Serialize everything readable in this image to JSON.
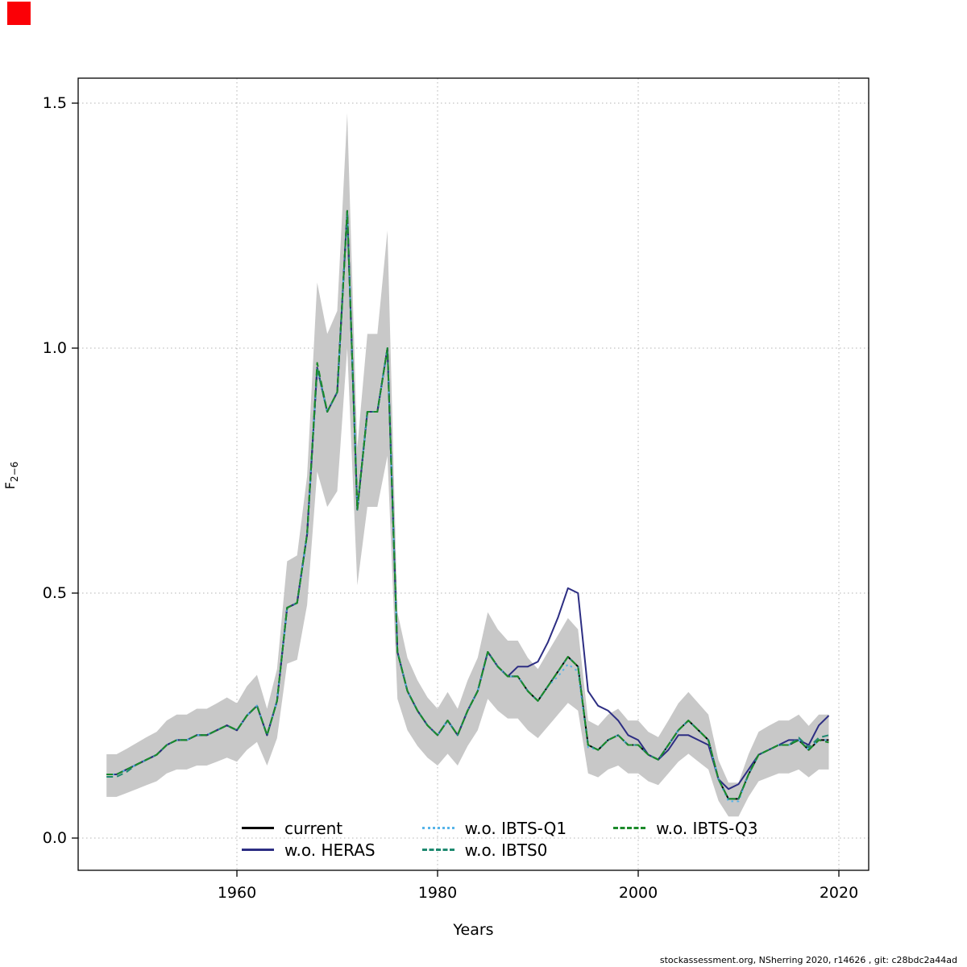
{
  "figure": {
    "xlabel": "Years",
    "ylabel_base": "F",
    "ylabel_sub": "2−6",
    "footer": "stockassessment.org, NSherring 2020, r14626 , git: c28bdc2a44ad"
  },
  "chart_data": {
    "type": "line",
    "title": "",
    "xlabel": "Years",
    "ylabel": "F_2-6",
    "xlim": [
      1944.2,
      2023
    ],
    "ylim": [
      -0.066,
      1.551
    ],
    "xticks": [
      1960,
      1980,
      2000,
      2020
    ],
    "xtick_labels": [
      "1960",
      "1980",
      "2000",
      "2020"
    ],
    "yticks": [
      0.0,
      0.5,
      1.0,
      1.5
    ],
    "ytick_labels": [
      "0.0",
      "0.5",
      "1.0",
      "1.5"
    ],
    "grid": "dotted",
    "grid_color": "#b3b3b3",
    "legend_position": "bottom-inside",
    "x": [
      1947,
      1948,
      1949,
      1950,
      1951,
      1952,
      1953,
      1954,
      1955,
      1956,
      1957,
      1958,
      1959,
      1960,
      1961,
      1962,
      1963,
      1964,
      1965,
      1966,
      1967,
      1968,
      1969,
      1970,
      1971,
      1972,
      1973,
      1974,
      1975,
      1976,
      1977,
      1978,
      1979,
      1980,
      1981,
      1982,
      1983,
      1984,
      1985,
      1986,
      1987,
      1988,
      1989,
      1990,
      1991,
      1992,
      1993,
      1994,
      1995,
      1996,
      1997,
      1998,
      1999,
      2000,
      2001,
      2002,
      2003,
      2004,
      2005,
      2006,
      2007,
      2008,
      2009,
      2010,
      2011,
      2012,
      2013,
      2014,
      2015,
      2016,
      2017,
      2018,
      2019
    ],
    "band": {
      "name": "confidence-band",
      "color": "#c8c8c8",
      "upper": [
        0.171,
        0.171,
        0.182,
        0.194,
        0.206,
        0.217,
        0.24,
        0.252,
        0.252,
        0.264,
        0.264,
        0.275,
        0.287,
        0.275,
        0.31,
        0.333,
        0.264,
        0.345,
        0.565,
        0.577,
        0.739,
        1.134,
        1.029,
        1.076,
        1.48,
        0.797,
        1.029,
        1.029,
        1.24,
        0.461,
        0.368,
        0.322,
        0.287,
        0.264,
        0.298,
        0.264,
        0.322,
        0.368,
        0.461,
        0.426,
        0.403,
        0.403,
        0.368,
        0.345,
        0.38,
        0.414,
        0.449,
        0.426,
        0.24,
        0.229,
        0.252,
        0.264,
        0.24,
        0.24,
        0.217,
        0.206,
        0.24,
        0.275,
        0.298,
        0.275,
        0.252,
        0.159,
        0.113,
        0.113,
        0.171,
        0.217,
        0.229,
        0.24,
        0.24,
        0.252,
        0.229,
        0.252,
        0.252
      ],
      "lower": [
        0.084,
        0.084,
        0.092,
        0.1,
        0.108,
        0.116,
        0.132,
        0.14,
        0.14,
        0.148,
        0.148,
        0.156,
        0.164,
        0.156,
        0.18,
        0.196,
        0.148,
        0.204,
        0.356,
        0.364,
        0.476,
        0.748,
        0.676,
        0.708,
        1.0,
        0.516,
        0.676,
        0.676,
        0.78,
        0.284,
        0.22,
        0.188,
        0.164,
        0.148,
        0.172,
        0.148,
        0.188,
        0.22,
        0.284,
        0.26,
        0.244,
        0.244,
        0.22,
        0.204,
        0.228,
        0.252,
        0.276,
        0.26,
        0.132,
        0.124,
        0.14,
        0.148,
        0.132,
        0.132,
        0.116,
        0.108,
        0.132,
        0.156,
        0.172,
        0.156,
        0.14,
        0.076,
        0.044,
        0.044,
        0.084,
        0.116,
        0.124,
        0.132,
        0.132,
        0.14,
        0.124,
        0.14,
        0.14
      ]
    },
    "series": [
      {
        "name": "current",
        "color": "#000000",
        "dash": "solid",
        "values": [
          0.13,
          0.13,
          0.14,
          0.15,
          0.16,
          0.17,
          0.19,
          0.2,
          0.2,
          0.21,
          0.21,
          0.22,
          0.23,
          0.22,
          0.25,
          0.27,
          0.21,
          0.28,
          0.47,
          0.48,
          0.62,
          0.96,
          0.87,
          0.91,
          1.28,
          0.67,
          0.87,
          0.87,
          1.0,
          0.38,
          0.3,
          0.26,
          0.23,
          0.21,
          0.24,
          0.21,
          0.26,
          0.3,
          0.38,
          0.35,
          0.33,
          0.33,
          0.3,
          0.28,
          0.31,
          0.34,
          0.37,
          0.35,
          0.19,
          0.18,
          0.2,
          0.21,
          0.19,
          0.19,
          0.17,
          0.16,
          0.19,
          0.22,
          0.24,
          0.22,
          0.2,
          0.12,
          0.08,
          0.08,
          0.13,
          0.17,
          0.18,
          0.19,
          0.19,
          0.2,
          0.18,
          0.2,
          0.2
        ]
      },
      {
        "name": "w.o. HERAS",
        "color": "#2d2e83",
        "dash": "solid",
        "values": [
          0.13,
          0.13,
          0.14,
          0.15,
          0.16,
          0.17,
          0.19,
          0.2,
          0.2,
          0.21,
          0.21,
          0.22,
          0.23,
          0.22,
          0.25,
          0.27,
          0.21,
          0.28,
          0.47,
          0.48,
          0.62,
          0.96,
          0.87,
          0.91,
          1.28,
          0.67,
          0.87,
          0.87,
          1.0,
          0.38,
          0.3,
          0.26,
          0.23,
          0.21,
          0.24,
          0.21,
          0.26,
          0.3,
          0.38,
          0.35,
          0.33,
          0.35,
          0.35,
          0.36,
          0.4,
          0.45,
          0.51,
          0.5,
          0.3,
          0.27,
          0.26,
          0.24,
          0.21,
          0.2,
          0.17,
          0.16,
          0.18,
          0.21,
          0.21,
          0.2,
          0.19,
          0.12,
          0.1,
          0.11,
          0.14,
          0.17,
          0.18,
          0.19,
          0.2,
          0.2,
          0.19,
          0.23,
          0.25
        ]
      },
      {
        "name": "w.o. IBTS-Q1",
        "color": "#56b4e9",
        "dash": "dotted",
        "values": [
          0.13,
          0.13,
          0.14,
          0.15,
          0.16,
          0.17,
          0.19,
          0.2,
          0.2,
          0.21,
          0.21,
          0.22,
          0.23,
          0.22,
          0.25,
          0.27,
          0.21,
          0.28,
          0.47,
          0.48,
          0.62,
          0.96,
          0.87,
          0.91,
          1.28,
          0.67,
          0.87,
          0.87,
          1.0,
          0.38,
          0.3,
          0.26,
          0.23,
          0.21,
          0.24,
          0.21,
          0.26,
          0.3,
          0.38,
          0.35,
          0.33,
          0.33,
          0.3,
          0.28,
          0.31,
          0.33,
          0.355,
          0.34,
          0.185,
          0.18,
          0.2,
          0.21,
          0.19,
          0.19,
          0.17,
          0.16,
          0.19,
          0.22,
          0.24,
          0.22,
          0.2,
          0.12,
          0.075,
          0.075,
          0.13,
          0.17,
          0.18,
          0.19,
          0.19,
          0.2,
          0.18,
          0.2,
          0.2
        ]
      },
      {
        "name": "w.o. IBTS0",
        "color": "#1f8a70",
        "dash": "dashed",
        "values": [
          0.125,
          0.125,
          0.135,
          0.15,
          0.16,
          0.17,
          0.19,
          0.2,
          0.2,
          0.21,
          0.21,
          0.22,
          0.23,
          0.22,
          0.25,
          0.27,
          0.21,
          0.28,
          0.47,
          0.48,
          0.62,
          0.96,
          0.87,
          0.91,
          1.28,
          0.67,
          0.87,
          0.87,
          1.0,
          0.38,
          0.3,
          0.26,
          0.23,
          0.21,
          0.24,
          0.21,
          0.26,
          0.3,
          0.38,
          0.35,
          0.33,
          0.33,
          0.3,
          0.28,
          0.31,
          0.34,
          0.37,
          0.35,
          0.19,
          0.18,
          0.2,
          0.21,
          0.19,
          0.19,
          0.17,
          0.16,
          0.19,
          0.22,
          0.24,
          0.22,
          0.2,
          0.12,
          0.08,
          0.08,
          0.13,
          0.17,
          0.18,
          0.19,
          0.19,
          0.205,
          0.185,
          0.205,
          0.21
        ]
      },
      {
        "name": "w.o. IBTS-Q3",
        "color": "#1b8a2a",
        "dash": "dashed",
        "values": [
          0.13,
          0.13,
          0.14,
          0.15,
          0.16,
          0.17,
          0.19,
          0.2,
          0.2,
          0.21,
          0.21,
          0.22,
          0.23,
          0.22,
          0.25,
          0.27,
          0.21,
          0.28,
          0.47,
          0.48,
          0.62,
          0.97,
          0.87,
          0.91,
          1.28,
          0.67,
          0.87,
          0.87,
          1.0,
          0.38,
          0.3,
          0.26,
          0.23,
          0.21,
          0.24,
          0.21,
          0.26,
          0.3,
          0.38,
          0.35,
          0.33,
          0.33,
          0.3,
          0.28,
          0.31,
          0.34,
          0.37,
          0.35,
          0.19,
          0.18,
          0.2,
          0.21,
          0.19,
          0.19,
          0.17,
          0.16,
          0.19,
          0.22,
          0.24,
          0.22,
          0.2,
          0.12,
          0.08,
          0.08,
          0.13,
          0.17,
          0.18,
          0.19,
          0.19,
          0.2,
          0.18,
          0.2,
          0.195
        ]
      }
    ]
  }
}
